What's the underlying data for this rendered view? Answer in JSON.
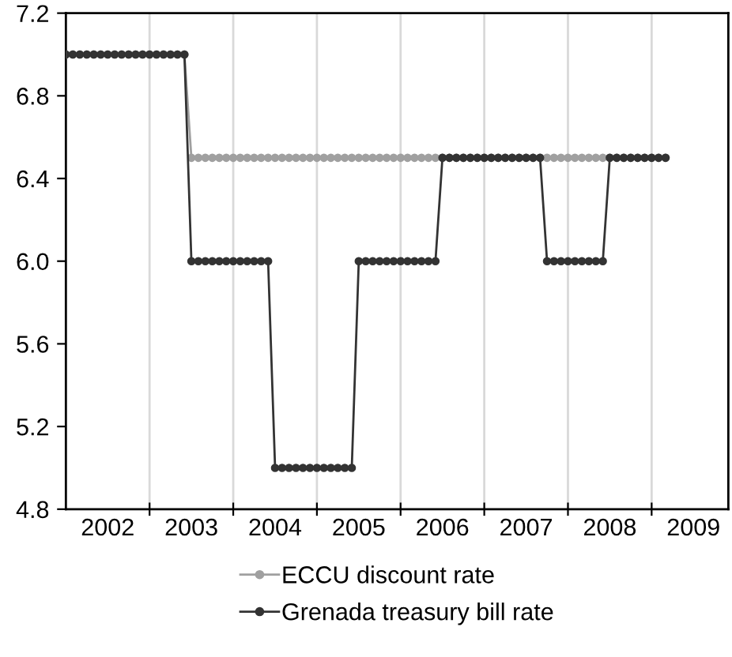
{
  "chart_data": {
    "type": "line",
    "x": [
      "2002-01",
      "2002-02",
      "2002-03",
      "2002-04",
      "2002-05",
      "2002-06",
      "2002-07",
      "2002-08",
      "2002-09",
      "2002-10",
      "2002-11",
      "2002-12",
      "2003-01",
      "2003-02",
      "2003-03",
      "2003-04",
      "2003-05",
      "2003-06",
      "2003-07",
      "2003-08",
      "2003-09",
      "2003-10",
      "2003-11",
      "2003-12",
      "2004-01",
      "2004-02",
      "2004-03",
      "2004-04",
      "2004-05",
      "2004-06",
      "2004-07",
      "2004-08",
      "2004-09",
      "2004-10",
      "2004-11",
      "2004-12",
      "2005-01",
      "2005-02",
      "2005-03",
      "2005-04",
      "2005-05",
      "2005-06",
      "2005-07",
      "2005-08",
      "2005-09",
      "2005-10",
      "2005-11",
      "2005-12",
      "2006-01",
      "2006-02",
      "2006-03",
      "2006-04",
      "2006-05",
      "2006-06",
      "2006-07",
      "2006-08",
      "2006-09",
      "2006-10",
      "2006-11",
      "2006-12",
      "2007-01",
      "2007-02",
      "2007-03",
      "2007-04",
      "2007-05",
      "2007-06",
      "2007-07",
      "2007-08",
      "2007-09",
      "2007-10",
      "2007-11",
      "2007-12",
      "2008-01",
      "2008-02",
      "2008-03",
      "2008-04",
      "2008-05",
      "2008-06",
      "2008-07",
      "2008-08",
      "2008-09",
      "2008-10",
      "2008-11",
      "2008-12",
      "2009-01",
      "2009-02",
      "2009-03"
    ],
    "series": [
      {
        "name": "ECCU discount rate",
        "color": "#a0a0a0",
        "values": [
          7.0,
          7.0,
          7.0,
          7.0,
          7.0,
          7.0,
          7.0,
          7.0,
          7.0,
          7.0,
          7.0,
          7.0,
          7.0,
          7.0,
          7.0,
          7.0,
          7.0,
          7.0,
          6.5,
          6.5,
          6.5,
          6.5,
          6.5,
          6.5,
          6.5,
          6.5,
          6.5,
          6.5,
          6.5,
          6.5,
          6.5,
          6.5,
          6.5,
          6.5,
          6.5,
          6.5,
          6.5,
          6.5,
          6.5,
          6.5,
          6.5,
          6.5,
          6.5,
          6.5,
          6.5,
          6.5,
          6.5,
          6.5,
          6.5,
          6.5,
          6.5,
          6.5,
          6.5,
          6.5,
          6.5,
          6.5,
          6.5,
          6.5,
          6.5,
          6.5,
          6.5,
          6.5,
          6.5,
          6.5,
          6.5,
          6.5,
          6.5,
          6.5,
          6.5,
          6.5,
          6.5,
          6.5,
          6.5,
          6.5,
          6.5,
          6.5,
          6.5,
          6.5,
          6.5,
          6.5,
          6.5,
          6.5,
          6.5,
          6.5,
          6.5,
          6.5,
          6.5
        ]
      },
      {
        "name": "Grenada treasury bill rate",
        "color": "#333333",
        "values": [
          7.0,
          7.0,
          7.0,
          7.0,
          7.0,
          7.0,
          7.0,
          7.0,
          7.0,
          7.0,
          7.0,
          7.0,
          7.0,
          7.0,
          7.0,
          7.0,
          7.0,
          7.0,
          6.0,
          6.0,
          6.0,
          6.0,
          6.0,
          6.0,
          6.0,
          6.0,
          6.0,
          6.0,
          6.0,
          6.0,
          5.0,
          5.0,
          5.0,
          5.0,
          5.0,
          5.0,
          5.0,
          5.0,
          5.0,
          5.0,
          5.0,
          5.0,
          6.0,
          6.0,
          6.0,
          6.0,
          6.0,
          6.0,
          6.0,
          6.0,
          6.0,
          6.0,
          6.0,
          6.0,
          6.5,
          6.5,
          6.5,
          6.5,
          6.5,
          6.5,
          6.5,
          6.5,
          6.5,
          6.5,
          6.5,
          6.5,
          6.5,
          6.5,
          6.5,
          6.0,
          6.0,
          6.0,
          6.0,
          6.0,
          6.0,
          6.0,
          6.0,
          6.0,
          6.5,
          6.5,
          6.5,
          6.5,
          6.5,
          6.5,
          6.5,
          6.5,
          6.5
        ]
      }
    ],
    "xlim": [
      "2002-01",
      "2009-12"
    ],
    "xticks": [
      {
        "value": "2002-07",
        "label": "2002"
      },
      {
        "value": "2003-01",
        "label": null
      },
      {
        "value": "2003-07",
        "label": "2003"
      },
      {
        "value": "2004-01",
        "label": null
      },
      {
        "value": "2004-07",
        "label": "2004"
      },
      {
        "value": "2005-01",
        "label": null
      },
      {
        "value": "2005-07",
        "label": "2005"
      },
      {
        "value": "2006-01",
        "label": null
      },
      {
        "value": "2006-07",
        "label": "2006"
      },
      {
        "value": "2007-01",
        "label": null
      },
      {
        "value": "2007-07",
        "label": "2007"
      },
      {
        "value": "2008-01",
        "label": null
      },
      {
        "value": "2008-07",
        "label": "2008"
      },
      {
        "value": "2009-01",
        "label": null
      },
      {
        "value": "2009-07",
        "label": "2009"
      }
    ],
    "ylim": [
      4.8,
      7.2
    ],
    "yticks": [
      {
        "value": 4.8,
        "label": "4.8"
      },
      {
        "value": 5.2,
        "label": "5.2"
      },
      {
        "value": 5.6,
        "label": "5.6"
      },
      {
        "value": 6.0,
        "label": "6.0"
      },
      {
        "value": 6.4,
        "label": "6.4"
      },
      {
        "value": 6.8,
        "label": "6.8"
      },
      {
        "value": 7.2,
        "label": "7.2"
      }
    ],
    "grid": "x",
    "legend": "bottom",
    "marker": "circle",
    "line_style": "solid"
  }
}
